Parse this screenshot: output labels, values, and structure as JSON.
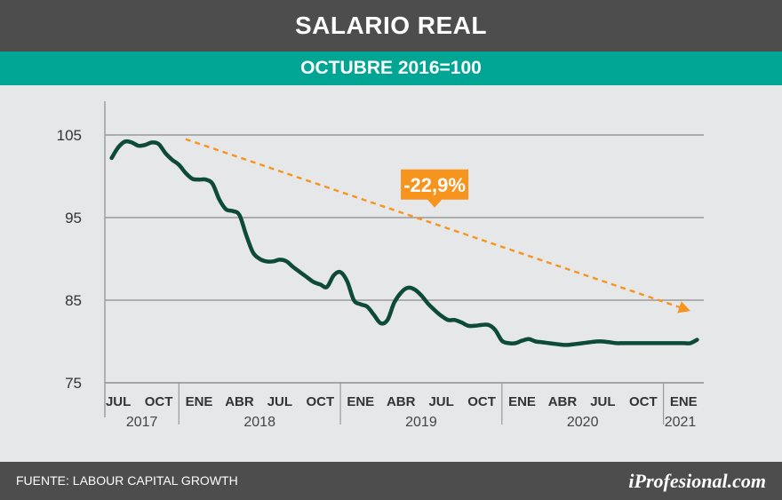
{
  "header": {
    "title": "SALARIO REAL",
    "subtitle": "OCTUBRE 2016=100"
  },
  "footer": {
    "source": "FUENTE: LABOUR CAPITAL GROWTH",
    "brand": "iProfesional.com"
  },
  "colors": {
    "title_bg": "#4d4d4d",
    "accent": "#00a693",
    "series": "#0d4a3a",
    "trend": "#f7941d",
    "background": "#e6e7e8"
  },
  "chart_data": {
    "type": "line",
    "title": "SALARIO REAL",
    "subtitle": "OCTUBRE 2016=100",
    "ylim": [
      75,
      108
    ],
    "yticks": [
      75,
      85,
      95,
      105
    ],
    "grid": true,
    "x_tick_labels": [
      "JUL",
      "OCT",
      "ENE",
      "ABR",
      "JUL",
      "OCT",
      "ENE",
      "ABR",
      "JUL",
      "OCT",
      "ENE",
      "ABR",
      "JUL",
      "OCT",
      "ENE"
    ],
    "x_tick_months": [
      6,
      9,
      12,
      15,
      18,
      21,
      24,
      27,
      30,
      33,
      36,
      39,
      42,
      45,
      48
    ],
    "years": [
      {
        "label": "2017",
        "start": 5,
        "end": 10.5
      },
      {
        "label": "2018",
        "start": 10.5,
        "end": 22.5
      },
      {
        "label": "2019",
        "start": 22.5,
        "end": 34.5
      },
      {
        "label": "2020",
        "start": 34.5,
        "end": 46.5
      },
      {
        "label": "2021",
        "start": 46.5,
        "end": 49
      }
    ],
    "series": [
      {
        "month_index": [
          5.5,
          6,
          6.5,
          7,
          7.5,
          8,
          8.5,
          9,
          9.5,
          10,
          10.5,
          11,
          11.5,
          12,
          12.5,
          13,
          13.5,
          14,
          14.5,
          15,
          15.5,
          16,
          16.5,
          17,
          17.5,
          18,
          18.5,
          19,
          19.5,
          20,
          20.5,
          21,
          21.5,
          22,
          22.5,
          23,
          23.5,
          24,
          24.5,
          25,
          25.5,
          26,
          26.5,
          27,
          27.5,
          28,
          28.5,
          29,
          29.5,
          30,
          30.5,
          31,
          31.5,
          32,
          32.5,
          33,
          33.5,
          34,
          34.5,
          35,
          35.5,
          36,
          36.5,
          37,
          37.5,
          38,
          38.5,
          39,
          39.5,
          40,
          40.5,
          41,
          41.5,
          42,
          42.5,
          43,
          43.5,
          44,
          44.5,
          45,
          45.5,
          46,
          46.5,
          47,
          47.5,
          48,
          48.5,
          49
        ],
        "values": [
          102.2,
          103.5,
          104.2,
          104.1,
          103.7,
          103.8,
          104.1,
          103.9,
          102.8,
          102.0,
          101.4,
          100.4,
          99.7,
          99.6,
          99.6,
          99.1,
          97.2,
          96.0,
          95.8,
          95.3,
          92.9,
          90.8,
          90.0,
          89.7,
          89.7,
          89.9,
          89.7,
          89.0,
          88.4,
          87.8,
          87.2,
          86.9,
          86.6,
          88.0,
          88.4,
          87.3,
          85.0,
          84.5,
          84.2,
          83.2,
          82.2,
          82.6,
          84.7,
          85.9,
          86.5,
          86.3,
          85.6,
          84.6,
          83.8,
          83.1,
          82.6,
          82.6,
          82.3,
          81.9,
          81.9,
          82.0,
          82.0,
          81.4,
          80.1,
          79.8,
          79.8,
          80.1,
          80.3,
          80.0,
          79.9,
          79.8,
          79.7,
          79.6,
          79.6,
          79.7,
          79.8,
          79.9,
          80.0,
          80.0,
          79.9,
          79.8,
          79.8,
          79.8,
          79.8,
          79.8,
          79.8,
          79.8,
          79.8,
          79.8,
          79.8,
          79.8,
          79.8,
          80.2
        ]
      },
      {
        "month_index": [
          11,
          48.5
        ],
        "values": [
          104.5,
          83.7
        ]
      }
    ],
    "annotations": [
      {
        "text": "-22,9%",
        "x": 29.5,
        "y": 99.0
      }
    ]
  }
}
